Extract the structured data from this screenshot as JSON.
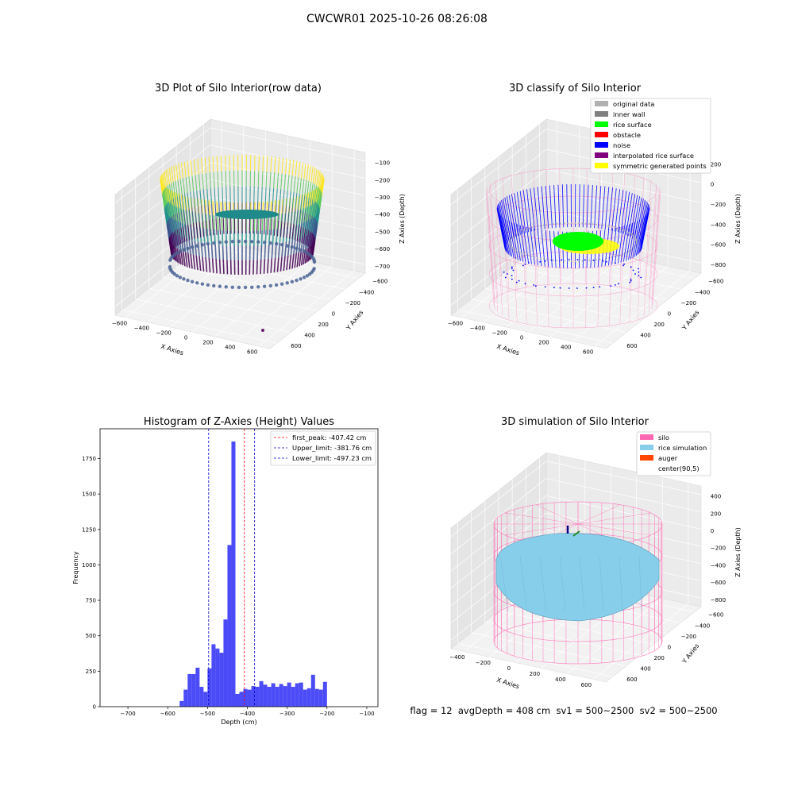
{
  "suptitle": "CWCWR01 2025-10-26 08:26:08",
  "status_line": "flag = 12  avgDepth = 408 cm  sv1 = 500~2500  sv2 = 500~2500",
  "chart_data": [
    {
      "type": "scatter3d",
      "title": "3D Plot of Silo Interior(row data)",
      "xlabel": "X Axies",
      "ylabel": "Y Axies",
      "zlabel": "Z Axies (Depth)",
      "x_ticks": [
        "−600",
        "−400",
        "−200",
        "0",
        "200",
        "400",
        "600"
      ],
      "y_ticks": [
        "−600",
        "−400",
        "−200",
        "0",
        "200",
        "400",
        "600"
      ],
      "z_ticks": [
        "−100",
        "−200",
        "−300",
        "−400",
        "−500",
        "−600",
        "−700"
      ],
      "colormap": [
        "#fde725",
        "#5ec962",
        "#21918c",
        "#3b528b",
        "#440154"
      ]
    },
    {
      "type": "scatter3d",
      "title": "3D classify of Silo Interior",
      "xlabel": "X Axies",
      "ylabel": "Y Axies",
      "zlabel": "Z Axies (Depth)",
      "x_ticks": [
        "−600",
        "−400",
        "−200",
        "0",
        "200",
        "400",
        "600"
      ],
      "y_ticks": [
        "−600",
        "−400",
        "−200",
        "0",
        "200",
        "400",
        "600"
      ],
      "z_ticks": [
        "200",
        "0",
        "−200",
        "−400",
        "−600",
        "−800"
      ],
      "legend": [
        {
          "name": "original data",
          "color": "#b0b0b0"
        },
        {
          "name": "inner wall",
          "color": "#808080"
        },
        {
          "name": "rice surface",
          "color": "#00ff00"
        },
        {
          "name": "obstacle",
          "color": "#ff0000"
        },
        {
          "name": "noise",
          "color": "#0000ff"
        },
        {
          "name": "interpolated rice surface",
          "color": "#800080"
        },
        {
          "name": "symmetric generated points",
          "color": "#ffff00"
        }
      ]
    },
    {
      "type": "bar",
      "title": "Histogram of Z-Axies (Height) Values",
      "xlabel": "Depth (cm)",
      "ylabel": "Frequency",
      "xlim": [
        -770,
        -72
      ],
      "ylim": [
        0,
        1960
      ],
      "bin_start": -570,
      "bin_width": 10,
      "values": [
        40,
        120,
        230,
        230,
        275,
        140,
        105,
        270,
        440,
        410,
        380,
        615,
        1140,
        1870,
        90,
        105,
        125,
        120,
        145,
        140,
        180,
        155,
        140,
        165,
        140,
        160,
        145,
        170,
        140,
        165,
        170,
        120,
        130,
        225,
        125,
        120,
        175
      ],
      "x_ticks": [
        -700,
        -600,
        -500,
        -400,
        -300,
        -200,
        -100
      ],
      "x_tick_labels": [
        "−700",
        "−600",
        "−500",
        "−400",
        "−300",
        "−200",
        "−100"
      ],
      "y_ticks": [
        0,
        250,
        500,
        750,
        1000,
        1250,
        1500,
        1750
      ],
      "y_tick_labels": [
        "0",
        "250",
        "500",
        "750",
        "1000",
        "1250",
        "1500",
        "1750"
      ],
      "bar_color": "#4b4bf7",
      "lines": [
        {
          "name": "first_peak: -407.42 cm",
          "x": -407.42,
          "color": "#ff0000"
        },
        {
          "name": "Upper_limit: -381.76 cm",
          "x": -381.76,
          "color": "#0000cc"
        },
        {
          "name": "Lower_limit: -497.23 cm",
          "x": -497.23,
          "color": "#0000cc"
        }
      ]
    },
    {
      "type": "surface3d",
      "title": "3D simulation of Silo Interior",
      "xlabel": "X Axies",
      "ylabel": "Y Axies",
      "zlabel": "Z Axies (Depth)",
      "x_ticks": [
        "−400",
        "−200",
        "0",
        "200",
        "400",
        "600"
      ],
      "y_ticks": [
        "−600",
        "−400",
        "−200",
        "0",
        "200",
        "400",
        "600"
      ],
      "z_ticks": [
        "400",
        "200",
        "0",
        "−200",
        "−400",
        "−600",
        "−800"
      ],
      "legend": [
        {
          "name": "silo",
          "color": "#ff69b4"
        },
        {
          "name": "rice simulation",
          "color": "#87ceeb"
        },
        {
          "name": "auger",
          "color": "#ff4500"
        },
        {
          "name": "center(90,5)",
          "color": ""
        }
      ]
    }
  ]
}
